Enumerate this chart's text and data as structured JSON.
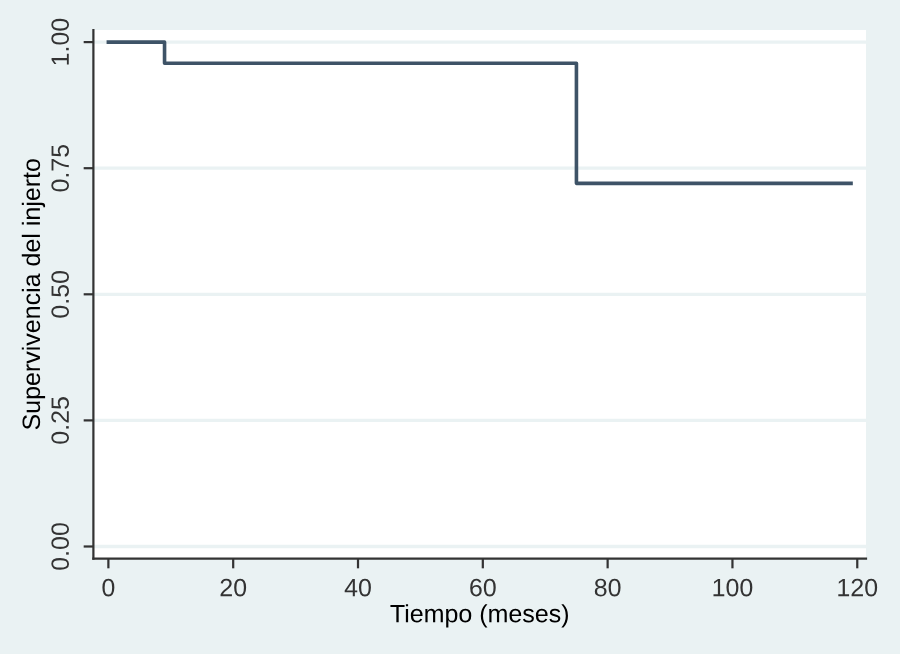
{
  "chart_data": {
    "type": "step",
    "xlabel": "Tiempo (meses)",
    "ylabel": "Supervivencia del injerto",
    "x": [
      0,
      9,
      75,
      119
    ],
    "series": [
      {
        "color": "#3e5367",
        "values": [
          1.0,
          0.958,
          0.72,
          0.72
        ]
      }
    ],
    "xlim": [
      -2.4,
      121.4
    ],
    "ylim": [
      -0.024,
      1.024
    ],
    "xticks": [
      0,
      20,
      40,
      60,
      80,
      100,
      120
    ],
    "yticks": [
      {
        "value": 0,
        "label": "0.00"
      },
      {
        "value": 0.25,
        "label": "0.25"
      },
      {
        "value": 0.5,
        "label": "0.50"
      },
      {
        "value": 0.75,
        "label": "0.75"
      },
      {
        "value": 1,
        "label": "1.00"
      }
    ],
    "grid": "y",
    "legend": false
  }
}
